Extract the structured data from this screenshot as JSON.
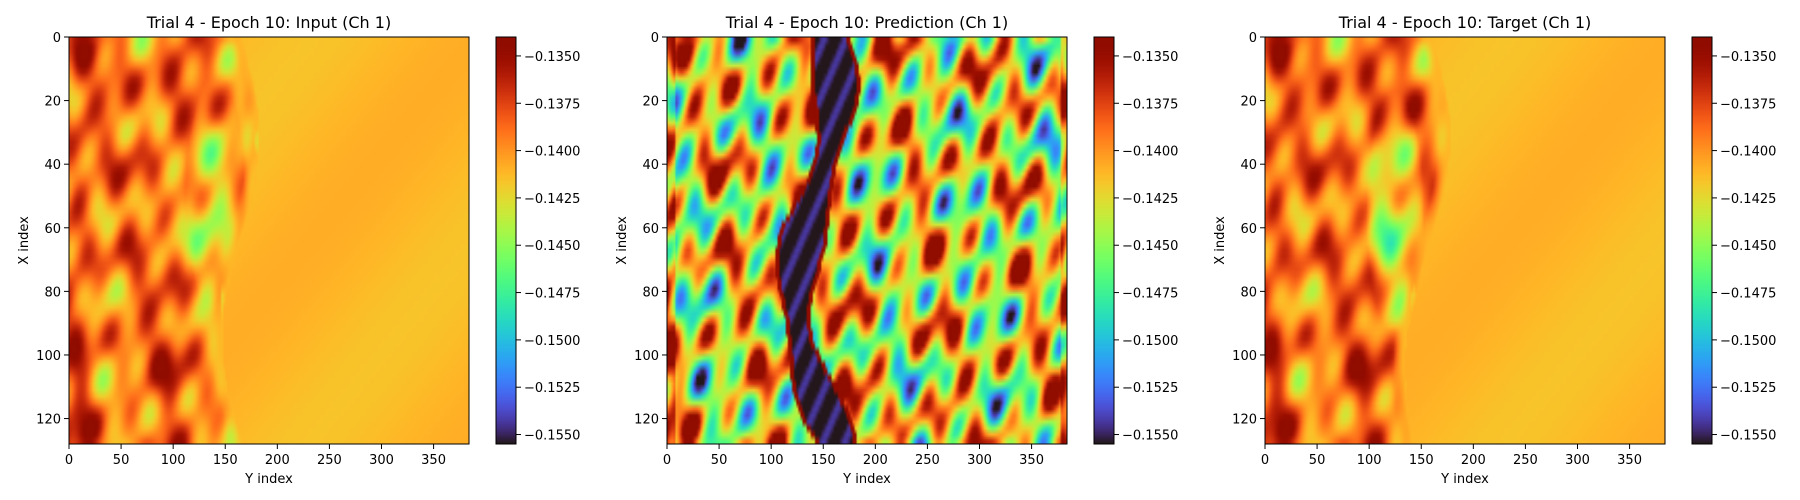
{
  "chart_data": [
    {
      "type": "heatmap",
      "title": "Trial 4 - Epoch 10: Input (Ch 1)",
      "xlabel": "Y index",
      "ylabel": "X index",
      "x_ticks": [
        0,
        50,
        100,
        150,
        200,
        250,
        300,
        350
      ],
      "y_ticks": [
        0,
        20,
        40,
        60,
        80,
        100,
        120
      ],
      "x_range": [
        0,
        384
      ],
      "y_range": [
        0,
        128
      ],
      "y_axis_direction": "top-to-bottom",
      "colormap": "turbo",
      "colorbar": {
        "vmin": -0.1555,
        "vmax": -0.134,
        "ticks": [
          -0.135,
          -0.1375,
          -0.14,
          -0.1425,
          -0.145,
          -0.1475,
          -0.15,
          -0.1525,
          -0.155
        ],
        "tick_labels": [
          "−0.1350",
          "−0.1375",
          "−0.1400",
          "−0.1425",
          "−0.1450",
          "−0.1475",
          "−0.1500",
          "−0.1525",
          "−0.1550"
        ]
      },
      "field_summary": {
        "background_value": -0.1412,
        "left_region_range": [
          -0.146,
          -0.136
        ],
        "front_y_position": 165,
        "front_x_span": [
          0,
          128
        ]
      }
    },
    {
      "type": "heatmap",
      "title": "Trial 4 - Epoch 10: Prediction (Ch 1)",
      "xlabel": "Y index",
      "ylabel": "X index",
      "x_ticks": [
        0,
        50,
        100,
        150,
        200,
        250,
        300,
        350
      ],
      "y_ticks": [
        0,
        20,
        40,
        60,
        80,
        100,
        120
      ],
      "x_range": [
        0,
        384
      ],
      "y_range": [
        0,
        128
      ],
      "y_axis_direction": "top-to-bottom",
      "colormap": "turbo",
      "colorbar": {
        "vmin": -0.1555,
        "vmax": -0.134,
        "ticks": [
          -0.135,
          -0.1375,
          -0.14,
          -0.1425,
          -0.145,
          -0.1475,
          -0.15,
          -0.1525,
          -0.155
        ],
        "tick_labels": [
          "−0.1350",
          "−0.1375",
          "−0.1400",
          "−0.1425",
          "−0.1450",
          "−0.1475",
          "−0.1500",
          "−0.1525",
          "−0.1550"
        ]
      },
      "field_summary": {
        "background_range": [
          -0.15,
          -0.136
        ],
        "dark_band_value": -0.1555,
        "dark_band_center_y": 140,
        "red_edge_value": -0.134
      }
    },
    {
      "type": "heatmap",
      "title": "Trial 4 - Epoch 10: Target (Ch 1)",
      "xlabel": "Y index",
      "ylabel": "X index",
      "x_ticks": [
        0,
        50,
        100,
        150,
        200,
        250,
        300,
        350
      ],
      "y_ticks": [
        0,
        20,
        40,
        60,
        80,
        100,
        120
      ],
      "x_range": [
        0,
        384
      ],
      "y_range": [
        0,
        128
      ],
      "y_axis_direction": "top-to-bottom",
      "colormap": "turbo",
      "colorbar": {
        "vmin": -0.1555,
        "vmax": -0.134,
        "ticks": [
          -0.135,
          -0.1375,
          -0.14,
          -0.1425,
          -0.145,
          -0.1475,
          -0.15,
          -0.1525,
          -0.155
        ],
        "tick_labels": [
          "−0.1350",
          "−0.1375",
          "−0.1400",
          "−0.1425",
          "−0.1450",
          "−0.1475",
          "−0.1500",
          "−0.1525",
          "−0.1550"
        ]
      },
      "field_summary": {
        "background_value": -0.1412,
        "left_region_range": [
          -0.146,
          -0.1375
        ],
        "front_y_position": 155,
        "front_x_span": [
          0,
          128
        ]
      }
    }
  ]
}
